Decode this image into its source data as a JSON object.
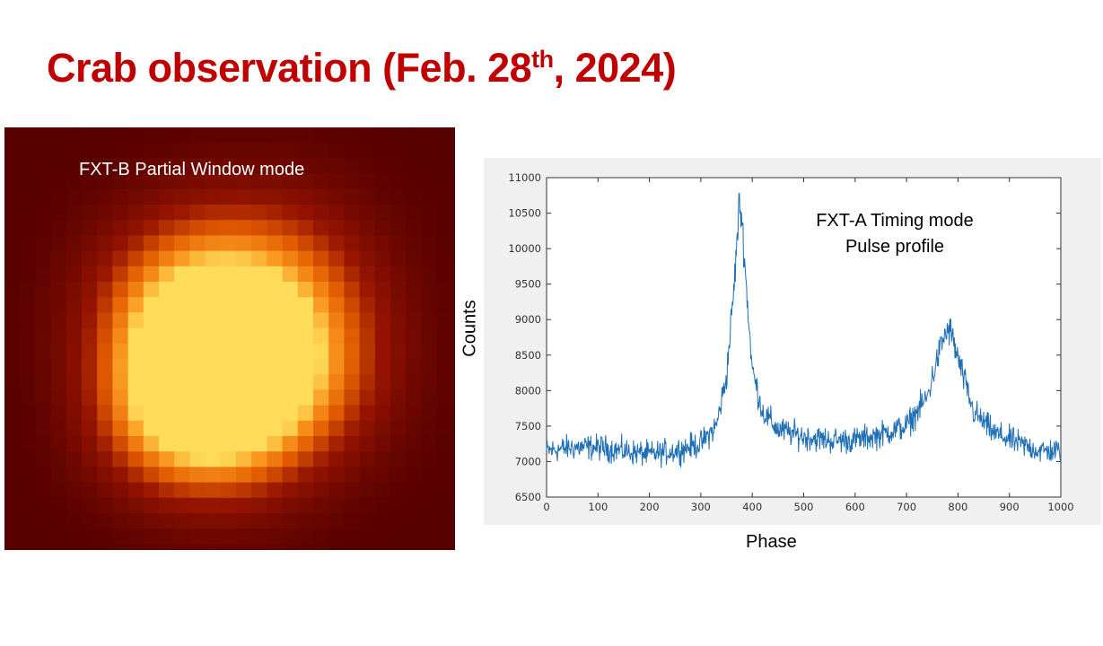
{
  "slide": {
    "title_main": "Crab observation (Feb. 28",
    "title_sup": "th",
    "title_end": ", 2024)"
  },
  "image_panel": {
    "label": "FXT-B Partial Window mode",
    "colormap": "hot",
    "colors": {
      "background": "#560000",
      "peak": "#ffdc5a"
    }
  },
  "chart_data": {
    "type": "line",
    "title": "",
    "annotation": [
      "FXT-A Timing mode",
      "Pulse profile"
    ],
    "xlabel": "Phase",
    "ylabel": "Counts",
    "xlim": [
      0,
      1000
    ],
    "ylim": [
      6500,
      11000
    ],
    "x_ticks": [
      "0",
      "100",
      "200",
      "300",
      "400",
      "500",
      "600",
      "700",
      "800",
      "900",
      "1000"
    ],
    "y_ticks": [
      "6500",
      "7000",
      "7500",
      "8000",
      "8500",
      "9000",
      "9500",
      "10000",
      "10500",
      "11000"
    ],
    "series": [
      {
        "name": "pulse profile",
        "color": "#1f6fb5",
        "x": [
          0,
          50,
          100,
          150,
          200,
          250,
          300,
          330,
          350,
          365,
          375,
          380,
          390,
          400,
          420,
          450,
          500,
          550,
          600,
          650,
          700,
          740,
          760,
          775,
          785,
          800,
          830,
          870,
          920,
          960,
          1000
        ],
        "y": [
          7150,
          7200,
          7200,
          7150,
          7100,
          7150,
          7250,
          7500,
          8200,
          9500,
          10650,
          10400,
          9300,
          8300,
          7700,
          7450,
          7350,
          7300,
          7300,
          7380,
          7500,
          7900,
          8450,
          8800,
          8850,
          8450,
          7700,
          7400,
          7250,
          7150,
          7150
        ]
      }
    ]
  }
}
